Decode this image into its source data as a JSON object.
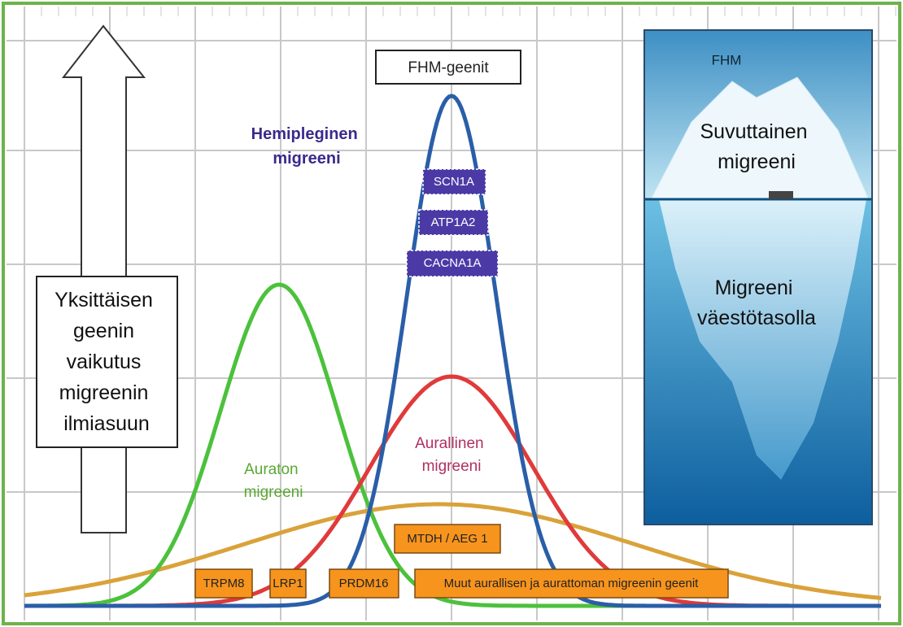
{
  "arrow_label": [
    "Yksittäisen",
    "geenin",
    "vaikutus",
    "migreenin",
    "ilmiasuun"
  ],
  "fhm_genes": "FHM-geenit",
  "hemiplegic": [
    "Hemipleginen",
    "migreeni"
  ],
  "fhm_gene_list": [
    "SCN1A",
    "ATP1A2",
    "CACNA1A"
  ],
  "aura_free": [
    "Auraton",
    "migreeni"
  ],
  "aura": [
    "Aurallinen",
    "migreeni"
  ],
  "genes": {
    "mtdh": "MTDH / AEG 1",
    "trpm8": "TRPM8",
    "lrp1": "LRP1",
    "prdm16": "PRDM16",
    "other": "Muut aurallisen ja aurattoman  migreenin geenit"
  },
  "iceberg": {
    "tip": "FHM",
    "middle": [
      "Suvuttainen",
      "migreeni"
    ],
    "bottom": [
      "Migreeni",
      "väestötasolla"
    ]
  }
}
